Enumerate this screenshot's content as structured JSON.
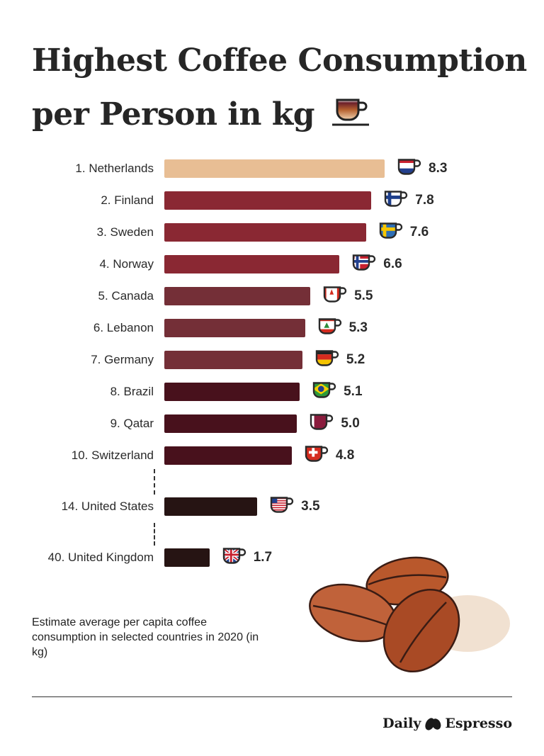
{
  "title": {
    "line1": "Highest Coffee Consumption",
    "line2": "per Person in kg",
    "icon": "coffee-cup-icon"
  },
  "chart_data": {
    "type": "bar",
    "orientation": "horizontal",
    "title": "Highest Coffee Consumption per Person in kg",
    "categories": [
      "1. Netherlands",
      "2. Finland",
      "3. Sweden",
      "4. Norway",
      "5. Canada",
      "6. Lebanon",
      "7. Germany",
      "8. Brazil",
      "9. Qatar",
      "10. Switzerland",
      "14. United States",
      "40. United Kingdom"
    ],
    "values": [
      8.3,
      7.8,
      7.6,
      6.6,
      5.5,
      5.3,
      5.2,
      5.1,
      5.0,
      4.8,
      3.5,
      1.7
    ],
    "value_labels": [
      "8.3",
      "7.8",
      "7.6",
      "6.6",
      "5.5",
      "5.3",
      "5.2",
      "5.1",
      "5.0",
      "4.8",
      "3.5",
      "1.7"
    ],
    "flags": [
      "netherlands",
      "finland",
      "sweden",
      "norway",
      "canada",
      "lebanon",
      "germany",
      "brazil",
      "qatar",
      "switzerland",
      "united-states",
      "united-kingdom"
    ],
    "bar_colors": [
      "#e8be94",
      "#8a2833",
      "#8a2833",
      "#8a2833",
      "#742f37",
      "#742f37",
      "#742f37",
      "#48111c",
      "#48111c",
      "#48111c",
      "#261413",
      "#261413"
    ],
    "unit": "kg",
    "grid": false,
    "gaps_after": [
      "10. Switzerland",
      "14. United States"
    ]
  },
  "note": "Estimate average per capita coffee consumption in selected countries in 2020 (in kg)",
  "brand": {
    "left": "Daily",
    "right": "Espresso",
    "icon": "coffee-bean-logo-icon"
  }
}
